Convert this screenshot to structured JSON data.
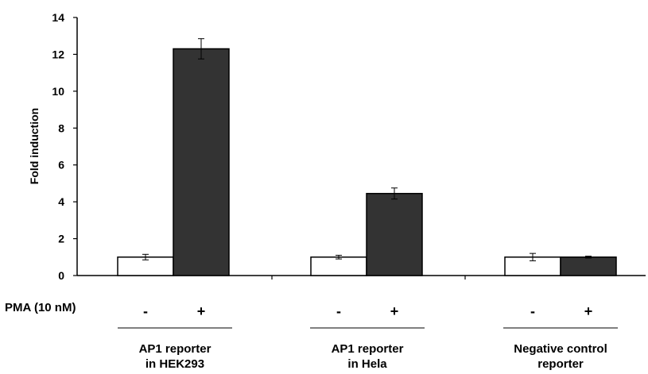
{
  "chart_data": {
    "type": "bar",
    "ylabel": "Fold induction",
    "ylim": [
      0,
      14
    ],
    "yticks": [
      "0",
      "2",
      "4",
      "6",
      "8",
      "10",
      "12",
      "14"
    ],
    "grid": false,
    "treatment_label": "PMA (10 nM)",
    "treatment_signs": [
      "-",
      "+"
    ],
    "groups": [
      {
        "label_lines": [
          "AP1 reporter",
          "in HEK293"
        ]
      },
      {
        "label_lines": [
          "AP1 reporter",
          "in Hela"
        ]
      },
      {
        "label_lines": [
          "Negative control",
          "reporter"
        ]
      }
    ],
    "series": [
      {
        "treatment": "-",
        "color": "#ffffff",
        "values": [
          1.0,
          1.0,
          1.0
        ],
        "errors": [
          0.15,
          0.1,
          0.2
        ]
      },
      {
        "treatment": "+",
        "color": "#333333",
        "values": [
          12.3,
          4.45,
          1.0
        ],
        "errors": [
          0.55,
          0.3,
          0.05
        ]
      }
    ]
  }
}
